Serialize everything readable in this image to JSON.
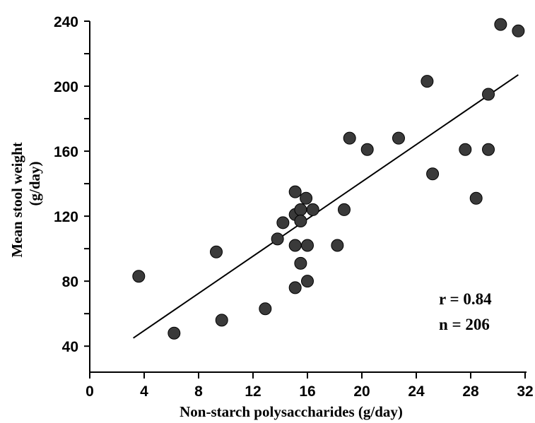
{
  "chart_data": {
    "type": "scatter",
    "title": "",
    "xlabel": "Non-starch polysaccharides (g/day)",
    "ylabel_line1": "Mean  stool weight",
    "ylabel_line2": "(g/day)",
    "xlim": [
      0,
      32
    ],
    "ylim": [
      24,
      240
    ],
    "x_ticks": [
      0,
      4,
      8,
      12,
      16,
      20,
      24,
      28,
      32
    ],
    "x_tick_labels": [
      "0",
      "4",
      "8",
      "12",
      "16",
      "20",
      "24",
      "28",
      "32"
    ],
    "y_ticks": [
      40,
      80,
      120,
      160,
      200,
      240
    ],
    "y_tick_labels": [
      "40",
      "80",
      "120",
      "160",
      "200",
      "240"
    ],
    "y_minor_ticks": [
      60,
      100,
      140,
      180,
      220
    ],
    "grid": false,
    "legend": "none",
    "marker_color": "#3a3a3a",
    "points": [
      {
        "x": 3.6,
        "y": 83
      },
      {
        "x": 6.2,
        "y": 48
      },
      {
        "x": 9.3,
        "y": 98
      },
      {
        "x": 9.7,
        "y": 56
      },
      {
        "x": 12.9,
        "y": 63
      },
      {
        "x": 13.8,
        "y": 106
      },
      {
        "x": 14.2,
        "y": 116
      },
      {
        "x": 15.1,
        "y": 135
      },
      {
        "x": 15.1,
        "y": 121
      },
      {
        "x": 15.1,
        "y": 102
      },
      {
        "x": 15.1,
        "y": 76
      },
      {
        "x": 15.5,
        "y": 124
      },
      {
        "x": 15.5,
        "y": 117
      },
      {
        "x": 15.5,
        "y": 91
      },
      {
        "x": 15.9,
        "y": 131
      },
      {
        "x": 16.0,
        "y": 102
      },
      {
        "x": 16.0,
        "y": 80
      },
      {
        "x": 16.4,
        "y": 124
      },
      {
        "x": 18.2,
        "y": 102
      },
      {
        "x": 18.7,
        "y": 124
      },
      {
        "x": 19.1,
        "y": 168
      },
      {
        "x": 20.4,
        "y": 161
      },
      {
        "x": 22.7,
        "y": 168
      },
      {
        "x": 24.8,
        "y": 203
      },
      {
        "x": 25.2,
        "y": 146
      },
      {
        "x": 27.6,
        "y": 161
      },
      {
        "x": 28.4,
        "y": 131
      },
      {
        "x": 29.3,
        "y": 195
      },
      {
        "x": 29.3,
        "y": 161
      },
      {
        "x": 30.2,
        "y": 238
      },
      {
        "x": 31.5,
        "y": 234
      }
    ],
    "regression_line": {
      "x": [
        3.2,
        31.5
      ],
      "y": [
        45,
        207
      ]
    },
    "annotations": [
      "r = 0.84",
      "n = 206"
    ]
  }
}
